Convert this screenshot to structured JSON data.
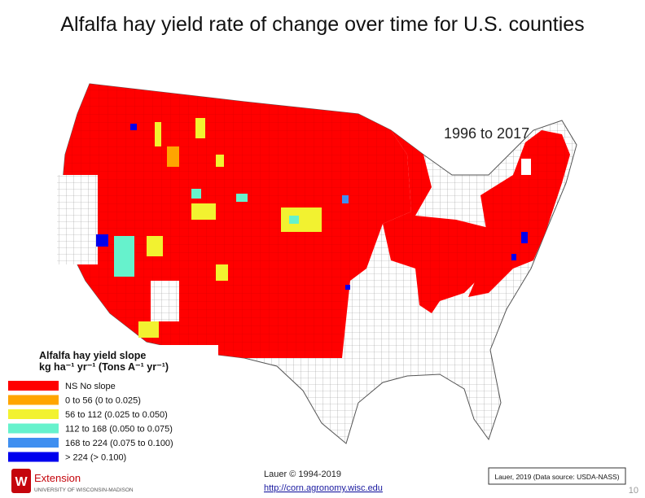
{
  "title": "Alfalfa hay yield rate of change over time for U.S. counties",
  "map": {
    "period_label": "1996 to 2017"
  },
  "legend": {
    "title_lines": [
      "Alfalfa hay yield slope",
      "kg ha⁻¹ yr⁻¹ (Tons A⁻¹ yr⁻¹)"
    ],
    "items": [
      {
        "label": "NS  No slope",
        "color": "#ff0000"
      },
      {
        "label": "0 to 56 (0 to 0.025)",
        "color": "#ffa500"
      },
      {
        "label": "56 to 112 (0.025 to 0.050)",
        "color": "#f2f230"
      },
      {
        "label": "112 to 168 (0.050 to 0.075)",
        "color": "#66f2cc"
      },
      {
        "label": "168 to 224 (0.075  to 0.100)",
        "color": "#3f8ff0"
      },
      {
        "label": "> 224 (> 0.100)",
        "color": "#0000ee"
      }
    ]
  },
  "footer": {
    "logo_name": "Extension",
    "logo_org": "UNIVERSITY OF WISCONSIN-MADISON",
    "copyright": "Lauer © 1994-2019",
    "url": "http://corn.agronomy.wisc.edu",
    "source": "Lauer, 2019 (Data source: USDA-NASS)",
    "page_number": "10"
  }
}
